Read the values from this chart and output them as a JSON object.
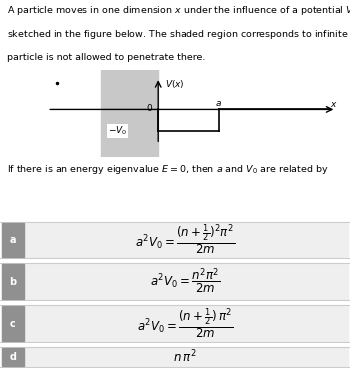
{
  "title_line1": "A particle moves in one dimension $x$ under the influence of a potential $V(x)$ as",
  "title_line2": "sketched in the figure below. The shaded region corresponds to infinite $V$, i.e., the",
  "title_line3": "particle is not allowed to penetrate there.",
  "question_text": "If there is an energy eigenvalue $E = 0$, then $a$ and $V_0$ are related by",
  "options": [
    {
      "label": "a",
      "formula": "$a^2V_0 = \\dfrac{(n+\\frac{1}{2})^2\\pi^2}{2m}$"
    },
    {
      "label": "b",
      "formula": "$a^2V_0 = \\dfrac{n^2\\pi^2}{2m}$"
    },
    {
      "label": "c",
      "formula": "$a^2V_0 = \\dfrac{(n+\\frac{1}{2})\\,\\pi^2}{2m}$"
    },
    {
      "label": "d",
      "formula": "$n\\,\\pi^2$"
    }
  ],
  "bg_color": "#ffffff",
  "shaded_color": "#c8c8c8",
  "option_label_bg": "#909090",
  "option_bg": "#efefef",
  "separator_color": "#cccccc",
  "text_color": "#000000",
  "font_size_text": 6.8,
  "font_size_formula": 8.5,
  "font_size_label": 7.0
}
